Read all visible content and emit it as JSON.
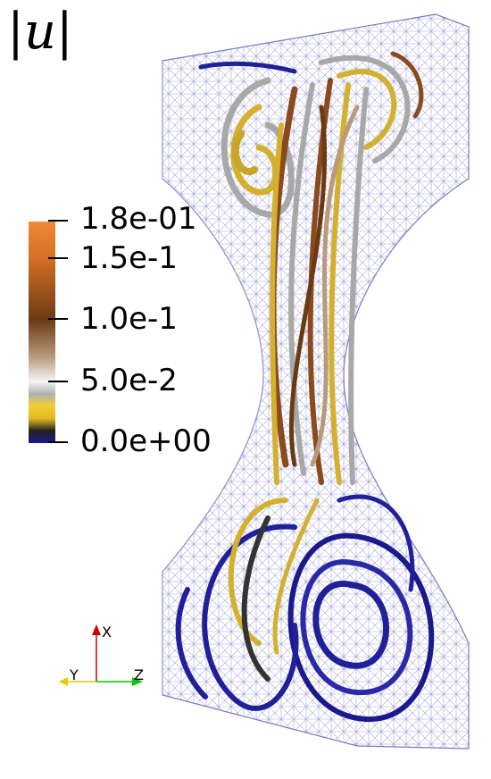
{
  "title": "|u|",
  "colorbar": {
    "labels": [
      "1.8e-01",
      "1.5e-1",
      "1.0e-1",
      "5.0e-2",
      "0.0e+00"
    ],
    "stops": [
      {
        "value": 0.18,
        "color": "#f08a35"
      },
      {
        "value": 0.15,
        "color": "#d46f25"
      },
      {
        "value": 0.1,
        "color": "#6b3a14"
      },
      {
        "value": 0.07,
        "color": "#b89a7c"
      },
      {
        "value": 0.05,
        "color": "#f5f5f5"
      },
      {
        "value": 0.04,
        "color": "#b0b0b0"
      },
      {
        "value": 0.03,
        "color": "#f0cf30"
      },
      {
        "value": 0.02,
        "color": "#e0b820"
      },
      {
        "value": 0.01,
        "color": "#222222"
      },
      {
        "value": 0.0,
        "color": "#1a1a8c"
      }
    ]
  },
  "axes": {
    "x_label": "X",
    "y_label": "Y",
    "z_label": "Z",
    "x_color": "#cc0000",
    "y_color": "#e8c800",
    "z_color": "#00c800"
  },
  "colors": {
    "mesh": "#9a9ad0",
    "streamline_low": "#20209a",
    "streamline_mid": "#d4b030",
    "streamline_high": "#8a4a1e",
    "streamline_gray": "#a8a8a8"
  }
}
